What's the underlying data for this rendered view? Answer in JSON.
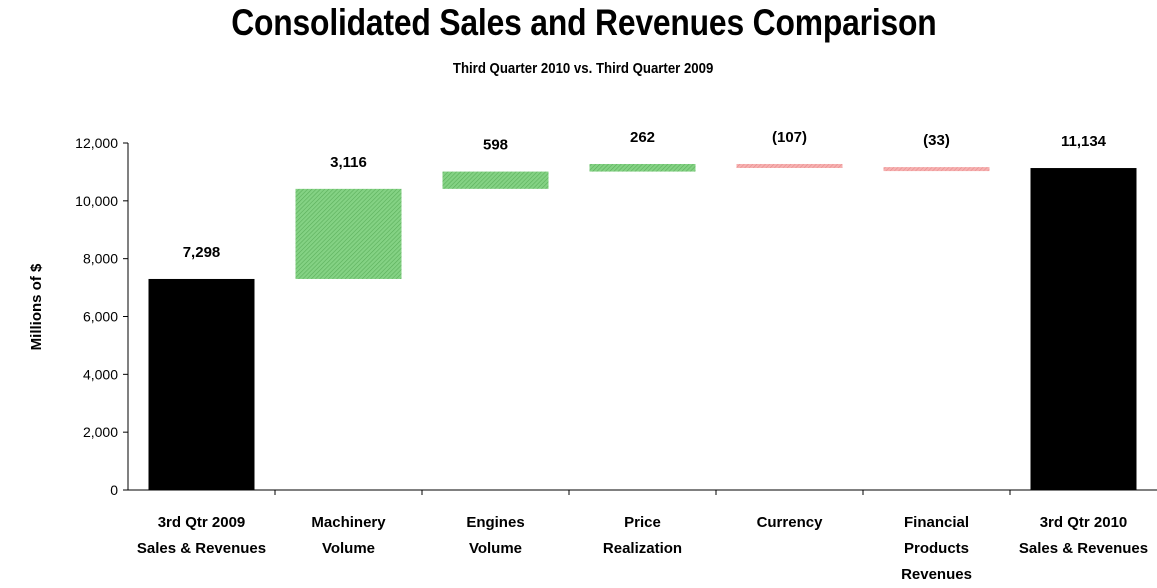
{
  "chart_data": {
    "type": "bar",
    "subtype": "waterfall",
    "title": "Consolidated Sales and Revenues Comparison",
    "subtitle": "Third Quarter 2010 vs. Third Quarter 2009",
    "ylabel": "Millions of $",
    "xlabel": "",
    "ylim": [
      0,
      12000
    ],
    "yticks": [
      0,
      2000,
      4000,
      6000,
      8000,
      10000,
      12000
    ],
    "ytick_labels": [
      "0",
      "2,000",
      "4,000",
      "6,000",
      "8,000",
      "10,000",
      "12,000"
    ],
    "grid": false,
    "legend": "none",
    "colors": {
      "total": "#000000",
      "increase": "#7ccf7c",
      "increase_hatch": "#5fb55f",
      "decrease": "#f3a3a3",
      "decrease_hatch": "#e88a8a"
    },
    "bars": [
      {
        "category": [
          "3rd Qtr 2009",
          "Sales & Revenues"
        ],
        "kind": "total",
        "value": 7298,
        "label": "7,298"
      },
      {
        "category": [
          "Machinery",
          "Volume"
        ],
        "kind": "increase",
        "value": 3116,
        "label": "3,116"
      },
      {
        "category": [
          "Engines",
          "Volume"
        ],
        "kind": "increase",
        "value": 598,
        "label": "598"
      },
      {
        "category": [
          "Price",
          "Realization"
        ],
        "kind": "increase",
        "value": 262,
        "label": "262"
      },
      {
        "category": [
          "Currency"
        ],
        "kind": "decrease",
        "value": -107,
        "label": "(107)"
      },
      {
        "category": [
          "Financial",
          "Products",
          "Revenues"
        ],
        "kind": "decrease",
        "value": -33,
        "label": "(33)"
      },
      {
        "category": [
          "3rd Qtr 2010",
          "Sales & Revenues"
        ],
        "kind": "total",
        "value": 11134,
        "label": "11,134"
      }
    ]
  }
}
